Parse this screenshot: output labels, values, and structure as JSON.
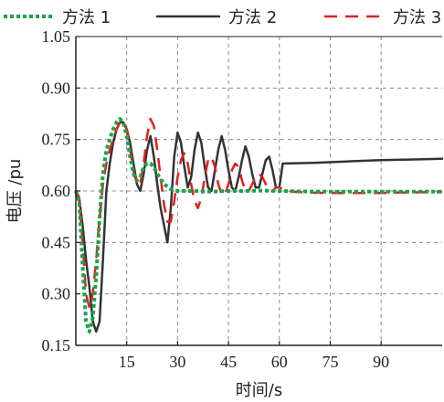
{
  "chart_data": {
    "type": "line",
    "title": "",
    "xlabel": "时间/s",
    "ylabel": "电压 /pu",
    "xlim": [
      0,
      108
    ],
    "ylim": [
      0.15,
      1.05
    ],
    "xticks": [
      15,
      30,
      45,
      60,
      75,
      90
    ],
    "xtick_labels": [
      "15",
      "30",
      "45",
      "60",
      "75",
      "90"
    ],
    "yticks": [
      0.15,
      0.3,
      0.45,
      0.6,
      0.75,
      0.9,
      1.05
    ],
    "ytick_labels": [
      "0.15",
      "0.30",
      "0.45",
      "0.60",
      "0.75",
      "0.90",
      "1.05"
    ],
    "grid": true,
    "legend_position": "top",
    "series": [
      {
        "name": "方法 1",
        "color": "#1aa34a",
        "style": "dotted",
        "points": [
          [
            0,
            0.6
          ],
          [
            1,
            0.57
          ],
          [
            2,
            0.38
          ],
          [
            3,
            0.22
          ],
          [
            4,
            0.19
          ],
          [
            5,
            0.23
          ],
          [
            6,
            0.35
          ],
          [
            7,
            0.52
          ],
          [
            8,
            0.65
          ],
          [
            9,
            0.72
          ],
          [
            10,
            0.75
          ],
          [
            11,
            0.78
          ],
          [
            12,
            0.8
          ],
          [
            13,
            0.81
          ],
          [
            14,
            0.8
          ],
          [
            15,
            0.76
          ],
          [
            16,
            0.7
          ],
          [
            17,
            0.65
          ],
          [
            18,
            0.63
          ],
          [
            19,
            0.64
          ],
          [
            20,
            0.67
          ],
          [
            21,
            0.68
          ],
          [
            22,
            0.68
          ],
          [
            23,
            0.67
          ],
          [
            24,
            0.65
          ],
          [
            26,
            0.62
          ],
          [
            28,
            0.605
          ],
          [
            30,
            0.6
          ],
          [
            35,
            0.6
          ],
          [
            40,
            0.598
          ],
          [
            45,
            0.6
          ],
          [
            50,
            0.6
          ],
          [
            55,
            0.601
          ],
          [
            60,
            0.6
          ],
          [
            70,
            0.598
          ],
          [
            80,
            0.598
          ],
          [
            90,
            0.598
          ],
          [
            100,
            0.598
          ],
          [
            108,
            0.598
          ]
        ]
      },
      {
        "name": "方法 2",
        "color": "#333333",
        "style": "solid",
        "points": [
          [
            0,
            0.6
          ],
          [
            1,
            0.58
          ],
          [
            2,
            0.5
          ],
          [
            3,
            0.4
          ],
          [
            4,
            0.32
          ],
          [
            5,
            0.22
          ],
          [
            6,
            0.19
          ],
          [
            7,
            0.22
          ],
          [
            8,
            0.4
          ],
          [
            9,
            0.6
          ],
          [
            10,
            0.68
          ],
          [
            11,
            0.74
          ],
          [
            12,
            0.78
          ],
          [
            13,
            0.8
          ],
          [
            14,
            0.8
          ],
          [
            15,
            0.78
          ],
          [
            16,
            0.74
          ],
          [
            17,
            0.68
          ],
          [
            18,
            0.62
          ],
          [
            19,
            0.6
          ],
          [
            20,
            0.65
          ],
          [
            21,
            0.72
          ],
          [
            22,
            0.76
          ],
          [
            23,
            0.7
          ],
          [
            24,
            0.62
          ],
          [
            25,
            0.55
          ],
          [
            26,
            0.5
          ],
          [
            27,
            0.45
          ],
          [
            28,
            0.55
          ],
          [
            29,
            0.7
          ],
          [
            30,
            0.77
          ],
          [
            31,
            0.74
          ],
          [
            32,
            0.67
          ],
          [
            33,
            0.61
          ],
          [
            34,
            0.64
          ],
          [
            35,
            0.72
          ],
          [
            36,
            0.77
          ],
          [
            37,
            0.74
          ],
          [
            38,
            0.67
          ],
          [
            39,
            0.61
          ],
          [
            40,
            0.6
          ],
          [
            41,
            0.66
          ],
          [
            42,
            0.72
          ],
          [
            43,
            0.76
          ],
          [
            44,
            0.72
          ],
          [
            45,
            0.66
          ],
          [
            46,
            0.61
          ],
          [
            47,
            0.6
          ],
          [
            48,
            0.64
          ],
          [
            49,
            0.69
          ],
          [
            50,
            0.73
          ],
          [
            51,
            0.7
          ],
          [
            52,
            0.65
          ],
          [
            53,
            0.61
          ],
          [
            54,
            0.61
          ],
          [
            55,
            0.65
          ],
          [
            56,
            0.69
          ],
          [
            57,
            0.7
          ],
          [
            58,
            0.66
          ],
          [
            59,
            0.61
          ],
          [
            60,
            0.61
          ],
          [
            61,
            0.68
          ],
          [
            70,
            0.682
          ],
          [
            80,
            0.686
          ],
          [
            90,
            0.69
          ],
          [
            100,
            0.692
          ],
          [
            108,
            0.694
          ]
        ]
      },
      {
        "name": "方法 3",
        "color": "#e0201b",
        "style": "dashed",
        "points": [
          [
            0,
            0.6
          ],
          [
            1,
            0.57
          ],
          [
            2,
            0.45
          ],
          [
            3,
            0.3
          ],
          [
            4,
            0.26
          ],
          [
            5,
            0.3
          ],
          [
            6,
            0.4
          ],
          [
            7,
            0.52
          ],
          [
            8,
            0.62
          ],
          [
            9,
            0.68
          ],
          [
            10,
            0.72
          ],
          [
            11,
            0.75
          ],
          [
            12,
            0.78
          ],
          [
            13,
            0.8
          ],
          [
            14,
            0.8
          ],
          [
            15,
            0.78
          ],
          [
            16,
            0.72
          ],
          [
            17,
            0.66
          ],
          [
            18,
            0.62
          ],
          [
            19,
            0.62
          ],
          [
            20,
            0.68
          ],
          [
            21,
            0.76
          ],
          [
            22,
            0.81
          ],
          [
            23,
            0.79
          ],
          [
            24,
            0.72
          ],
          [
            25,
            0.64
          ],
          [
            26,
            0.56
          ],
          [
            27,
            0.51
          ],
          [
            28,
            0.51
          ],
          [
            29,
            0.57
          ],
          [
            30,
            0.64
          ],
          [
            31,
            0.69
          ],
          [
            32,
            0.71
          ],
          [
            33,
            0.68
          ],
          [
            34,
            0.62
          ],
          [
            35,
            0.57
          ],
          [
            36,
            0.55
          ],
          [
            37,
            0.58
          ],
          [
            38,
            0.64
          ],
          [
            39,
            0.69
          ],
          [
            40,
            0.7
          ],
          [
            41,
            0.67
          ],
          [
            42,
            0.62
          ],
          [
            43,
            0.59
          ],
          [
            44,
            0.59
          ],
          [
            45,
            0.62
          ],
          [
            46,
            0.66
          ],
          [
            47,
            0.68
          ],
          [
            48,
            0.67
          ],
          [
            49,
            0.63
          ],
          [
            50,
            0.6
          ],
          [
            51,
            0.6
          ],
          [
            52,
            0.62
          ],
          [
            53,
            0.64
          ],
          [
            54,
            0.65
          ],
          [
            55,
            0.64
          ],
          [
            56,
            0.62
          ],
          [
            57,
            0.6
          ],
          [
            58,
            0.6
          ],
          [
            59,
            0.61
          ],
          [
            60,
            0.61
          ],
          [
            61,
            0.605
          ],
          [
            62,
            0.6
          ],
          [
            65,
            0.597
          ],
          [
            70,
            0.595
          ],
          [
            75,
            0.594
          ],
          [
            80,
            0.594
          ],
          [
            85,
            0.594
          ],
          [
            90,
            0.594
          ],
          [
            95,
            0.595
          ],
          [
            100,
            0.596
          ],
          [
            108,
            0.597
          ]
        ]
      }
    ]
  }
}
